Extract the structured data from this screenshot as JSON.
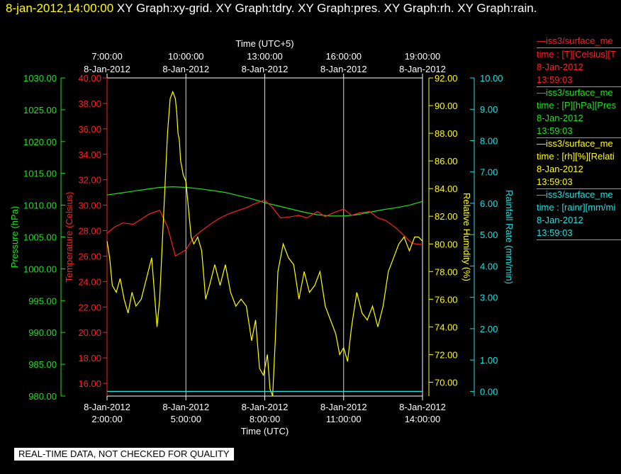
{
  "header": {
    "timestamp": "8-jan-2012,14:00:00",
    "titles": [
      "XY Graph:xy-grid.",
      "XY Graph:tdry.",
      "XY Graph:pres.",
      "XY Graph:rh.",
      "XY Graph:rain."
    ]
  },
  "legend": [
    {
      "name": "iss3/surface_me",
      "field": "time : [T][Celsius][T",
      "date": "8-Jan-2012",
      "time": "13:59:03",
      "color": "#ff2020"
    },
    {
      "name": "iss3/surface_me",
      "field": "time : [P][hPa][Pres",
      "date": "8-Jan-2012",
      "time": "13:59:03",
      "color": "#20e020"
    },
    {
      "name": "iss3/surface_me",
      "field": "time : [rh][%][Relati",
      "date": "8-Jan-2012",
      "time": "13:59:03",
      "color": "#ffff00"
    },
    {
      "name": "iss3/surface_me",
      "field": "time : [rainr][mm/mi",
      "date": "8-Jan-2012",
      "time": "13:59:03",
      "color": "#20e0e0"
    }
  ],
  "banner": "REAL-TIME DATA, NOT CHECKED FOR QUALITY",
  "chart_data": {
    "type": "line",
    "grid": true,
    "x_bottom": {
      "label": "Time (UTC)",
      "ticks": [
        {
          "date": "8-Jan-2012",
          "time": "2:00:00",
          "h": 2
        },
        {
          "date": "8-Jan-2012",
          "time": "5:00:00",
          "h": 5
        },
        {
          "date": "8-Jan-2012",
          "time": "8:00:00",
          "h": 8
        },
        {
          "date": "8-Jan-2012",
          "time": "11:00:00",
          "h": 11
        },
        {
          "date": "8-Jan-2012",
          "time": "14:00:00",
          "h": 14
        }
      ],
      "range_hours": [
        2,
        14
      ]
    },
    "x_top": {
      "label": "Time (UTC+5)",
      "ticks": [
        {
          "time": "7:00:00",
          "date": "8-Jan-2012"
        },
        {
          "time": "10:00:00",
          "date": "8-Jan-2012"
        },
        {
          "time": "13:00:00",
          "date": "8-Jan-2012"
        },
        {
          "time": "16:00:00",
          "date": "8-Jan-2012"
        },
        {
          "time": "19:00:00",
          "date": "8-Jan-2012"
        }
      ]
    },
    "y_pressure": {
      "label": "Pressure (hPa)",
      "range": [
        980,
        1030
      ],
      "ticks": [
        "1030.00",
        "1025.00",
        "1020.00",
        "1015.00",
        "1010.00",
        "1005.00",
        "1000.00",
        "995.00",
        "990.00",
        "985.00",
        "980.00"
      ],
      "color": "#20e020"
    },
    "y_temperature": {
      "label": "Temperature (Celsius)",
      "range": [
        15,
        40
      ],
      "ticks": [
        "40.00",
        "38.00",
        "36.00",
        "34.00",
        "32.00",
        "30.00",
        "28.00",
        "26.00",
        "24.00",
        "22.00",
        "20.00",
        "18.00",
        "16.00"
      ],
      "color": "#ff2020"
    },
    "y_rh": {
      "label": "Relative Humidity (%)",
      "range": [
        69,
        92
      ],
      "ticks": [
        "92.00",
        "90.00",
        "88.00",
        "86.00",
        "84.00",
        "82.00",
        "80.00",
        "78.00",
        "76.00",
        "74.00",
        "72.00",
        "70.00"
      ],
      "color": "#ffff00"
    },
    "y_rain": {
      "label": "Rainfall Rate (mm/min)",
      "range": [
        -0.15,
        10
      ],
      "ticks": [
        "10.00",
        "9.00",
        "8.00",
        "7.00",
        "6.00",
        "5.00",
        "4.00",
        "3.00",
        "2.00",
        "1.00",
        "0.00"
      ],
      "color": "#20e0e0"
    },
    "series": [
      {
        "axis": "pressure",
        "color": "#20e020",
        "x": [
          2.0,
          2.5,
          3.0,
          3.5,
          4.0,
          4.5,
          5.0,
          5.5,
          6.0,
          6.5,
          7.0,
          7.5,
          8.0,
          8.5,
          9.0,
          9.5,
          10.0,
          10.5,
          11.0,
          11.5,
          12.0,
          12.5,
          13.0,
          13.5,
          14.0
        ],
        "y": [
          1011.6,
          1011.9,
          1012.2,
          1012.5,
          1012.8,
          1012.9,
          1012.8,
          1012.6,
          1012.3,
          1012.0,
          1011.5,
          1011.0,
          1010.4,
          1009.9,
          1009.4,
          1008.9,
          1008.5,
          1008.3,
          1008.3,
          1008.5,
          1008.9,
          1009.3,
          1009.6,
          1010.0,
          1010.6
        ]
      },
      {
        "axis": "temperature",
        "color": "#ff2020",
        "x": [
          2.0,
          2.3,
          2.6,
          3.0,
          3.3,
          3.6,
          4.0,
          4.3,
          4.6,
          5.0,
          5.3,
          5.6,
          6.0,
          6.3,
          6.6,
          7.0,
          7.3,
          7.6,
          8.0,
          8.3,
          8.6,
          9.0,
          9.3,
          9.6,
          10.0,
          10.3,
          10.6,
          11.0,
          11.3,
          11.6,
          12.0,
          12.3,
          12.6,
          13.0,
          13.3,
          13.6,
          14.0
        ],
        "y": [
          27.8,
          28.3,
          28.6,
          28.5,
          28.9,
          29.3,
          29.6,
          28.3,
          26.0,
          26.5,
          27.5,
          28.0,
          28.6,
          29.0,
          29.3,
          29.6,
          29.8,
          30.1,
          30.4,
          29.8,
          29.0,
          29.1,
          29.2,
          29.0,
          29.5,
          29.1,
          29.4,
          29.7,
          29.2,
          29.4,
          29.5,
          29.0,
          28.8,
          28.2,
          27.6,
          27.0,
          26.9
        ]
      },
      {
        "axis": "rh",
        "color": "#ffff00",
        "x": [
          2.0,
          2.1,
          2.2,
          2.35,
          2.5,
          2.65,
          2.8,
          2.95,
          3.1,
          3.3,
          3.5,
          3.7,
          3.8,
          3.9,
          4.0,
          4.1,
          4.2,
          4.3,
          4.4,
          4.5,
          4.6,
          4.65,
          4.7,
          4.75,
          4.8,
          4.9,
          5.0,
          5.1,
          5.2,
          5.3,
          5.45,
          5.6,
          5.75,
          5.9,
          6.1,
          6.3,
          6.5,
          6.7,
          6.9,
          7.1,
          7.3,
          7.5,
          7.65,
          7.8,
          7.95,
          8.1,
          8.2,
          8.3,
          8.4,
          8.5,
          8.7,
          8.9,
          9.1,
          9.3,
          9.5,
          9.7,
          9.9,
          10.1,
          10.3,
          10.5,
          10.7,
          10.85,
          11.0,
          11.15,
          11.3,
          11.5,
          11.7,
          11.9,
          12.1,
          12.3,
          12.5,
          12.7,
          12.9,
          13.1,
          13.3,
          13.5,
          13.7,
          13.85,
          14.0
        ],
        "y": [
          80.2,
          79.0,
          77.0,
          76.5,
          77.5,
          76.0,
          75.0,
          76.5,
          75.5,
          76.0,
          77.5,
          79.0,
          76.5,
          74.0,
          76.0,
          80.0,
          84.0,
          88.0,
          90.5,
          91.0,
          90.5,
          89.5,
          88.0,
          87.5,
          86.0,
          85.0,
          84.5,
          82.5,
          80.5,
          80.0,
          80.5,
          79.5,
          76.0,
          77.0,
          78.5,
          77.0,
          78.5,
          76.5,
          75.5,
          76.0,
          75.5,
          73.0,
          74.5,
          71.0,
          70.5,
          72.0,
          69.5,
          69.0,
          73.0,
          78.0,
          80.0,
          79.0,
          78.5,
          76.0,
          78.0,
          76.5,
          77.0,
          78.0,
          75.5,
          74.5,
          73.5,
          72.0,
          72.5,
          71.5,
          74.0,
          76.5,
          75.0,
          74.5,
          75.5,
          74.0,
          75.5,
          78.0,
          79.0,
          80.0,
          80.5,
          79.5,
          80.5,
          80.5,
          80.2
        ]
      },
      {
        "axis": "rain",
        "color": "#20e0e0",
        "x": [
          2.0,
          14.0
        ],
        "y": [
          0.0,
          0.0
        ]
      }
    ]
  }
}
